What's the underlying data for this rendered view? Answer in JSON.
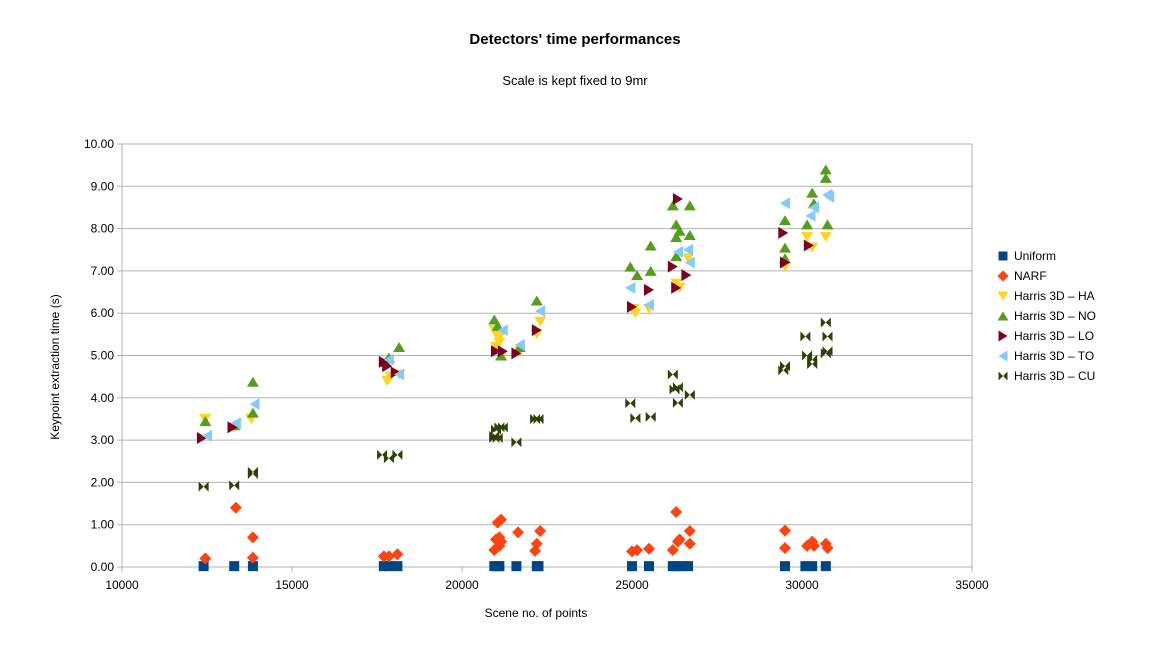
{
  "chart_data": {
    "type": "scatter",
    "title": "Detectors' time performances",
    "subtitle": "Scale is kept fixed to 9mr",
    "xlabel": "Scene no. of points",
    "ylabel": "Keypoint extraction time (s)",
    "xlim": [
      10000,
      35000
    ],
    "ylim": [
      0,
      10
    ],
    "x_ticks": [
      "10000",
      "15000",
      "20000",
      "25000",
      "30000",
      "35000"
    ],
    "y_ticks": [
      "0.00",
      "1.00",
      "2.00",
      "3.00",
      "4.00",
      "5.00",
      "6.00",
      "7.00",
      "8.00",
      "9.00",
      "10.00"
    ],
    "grid": "horizontal",
    "legend_position": "right",
    "series": [
      {
        "name": "Uniform",
        "color": "#004586",
        "marker": "square",
        "points": [
          [
            12400,
            0.02
          ],
          [
            13300,
            0.02
          ],
          [
            13850,
            0.02
          ],
          [
            17700,
            0.02
          ],
          [
            17850,
            0.02
          ],
          [
            18100,
            0.02
          ],
          [
            20950,
            0.02
          ],
          [
            21050,
            0.02
          ],
          [
            21100,
            0.02
          ],
          [
            21600,
            0.02
          ],
          [
            22200,
            0.02
          ],
          [
            22250,
            0.02
          ],
          [
            25000,
            0.02
          ],
          [
            25500,
            0.02
          ],
          [
            26200,
            0.02
          ],
          [
            26300,
            0.02
          ],
          [
            26500,
            0.02
          ],
          [
            26650,
            0.02
          ],
          [
            29500,
            0.02
          ],
          [
            30100,
            0.02
          ],
          [
            30300,
            0.02
          ],
          [
            30700,
            0.02
          ]
        ]
      },
      {
        "name": "NARF",
        "color": "#ff420e",
        "marker": "diamond",
        "points": [
          [
            12450,
            0.2
          ],
          [
            13350,
            1.4
          ],
          [
            13850,
            0.22
          ],
          [
            13850,
            0.7
          ],
          [
            17700,
            0.25
          ],
          [
            17850,
            0.25
          ],
          [
            18100,
            0.3
          ],
          [
            20950,
            0.4
          ],
          [
            21000,
            0.65
          ],
          [
            21050,
            1.05
          ],
          [
            21100,
            0.7
          ],
          [
            21150,
            1.12
          ],
          [
            21100,
            0.5
          ],
          [
            21150,
            0.6
          ],
          [
            21650,
            0.82
          ],
          [
            22150,
            0.38
          ],
          [
            22200,
            0.55
          ],
          [
            22300,
            0.85
          ],
          [
            25000,
            0.37
          ],
          [
            25150,
            0.4
          ],
          [
            25500,
            0.43
          ],
          [
            26200,
            0.4
          ],
          [
            26300,
            1.3
          ],
          [
            26350,
            0.6
          ],
          [
            26400,
            0.65
          ],
          [
            26700,
            0.85
          ],
          [
            26700,
            0.55
          ],
          [
            29500,
            0.86
          ],
          [
            29500,
            0.45
          ],
          [
            30150,
            0.5
          ],
          [
            30300,
            0.6
          ],
          [
            30350,
            0.5
          ],
          [
            30700,
            0.55
          ],
          [
            30750,
            0.45
          ]
        ]
      },
      {
        "name": "Harris 3D – HA",
        "color": "#ffd320",
        "marker": "triangle-down",
        "points": [
          [
            12450,
            3.5
          ],
          [
            13300,
            3.3
          ],
          [
            13800,
            3.5
          ],
          [
            17800,
            4.4
          ],
          [
            17900,
            4.5
          ],
          [
            18150,
            4.55
          ],
          [
            21000,
            5.2
          ],
          [
            21050,
            5.45
          ],
          [
            21100,
            5.3
          ],
          [
            21150,
            5.5
          ],
          [
            20950,
            5.6
          ],
          [
            21150,
            5.0
          ],
          [
            21700,
            5.1
          ],
          [
            22200,
            5.5
          ],
          [
            22300,
            5.8
          ],
          [
            25050,
            6.1
          ],
          [
            25100,
            6.0
          ],
          [
            25500,
            6.1
          ],
          [
            26300,
            6.7
          ],
          [
            26400,
            6.6
          ],
          [
            26650,
            7.3
          ],
          [
            29500,
            7.1
          ],
          [
            30150,
            7.8
          ],
          [
            30300,
            7.55
          ],
          [
            30700,
            7.8
          ]
        ]
      },
      {
        "name": "Harris 3D – NO",
        "color": "#579d1c",
        "marker": "triangle-up",
        "points": [
          [
            12450,
            3.45
          ],
          [
            13300,
            3.35
          ],
          [
            13850,
            3.65
          ],
          [
            13850,
            4.38
          ],
          [
            17750,
            4.85
          ],
          [
            17850,
            4.95
          ],
          [
            18150,
            5.2
          ],
          [
            20950,
            5.85
          ],
          [
            21050,
            5.7
          ],
          [
            21150,
            5.0
          ],
          [
            21700,
            5.2
          ],
          [
            22200,
            6.3
          ],
          [
            24950,
            7.1
          ],
          [
            25150,
            6.9
          ],
          [
            25550,
            7.6
          ],
          [
            25550,
            7.0
          ],
          [
            26200,
            8.55
          ],
          [
            26300,
            8.1
          ],
          [
            26300,
            7.8
          ],
          [
            26400,
            7.95
          ],
          [
            26300,
            7.35
          ],
          [
            26700,
            8.55
          ],
          [
            26700,
            7.85
          ],
          [
            29500,
            8.2
          ],
          [
            29500,
            7.55
          ],
          [
            29500,
            7.3
          ],
          [
            30150,
            8.1
          ],
          [
            30300,
            8.85
          ],
          [
            30350,
            8.6
          ],
          [
            30700,
            9.4
          ],
          [
            30700,
            9.2
          ],
          [
            30750,
            8.1
          ]
        ]
      },
      {
        "name": "Harris 3D – LO",
        "color": "#7e0021",
        "marker": "triangle-right",
        "points": [
          [
            12350,
            3.05
          ],
          [
            13250,
            3.3
          ],
          [
            17700,
            4.85
          ],
          [
            17800,
            4.75
          ],
          [
            18050,
            4.6
          ],
          [
            21000,
            5.1
          ],
          [
            21200,
            5.1
          ],
          [
            21600,
            5.05
          ],
          [
            22200,
            5.6
          ],
          [
            25000,
            6.15
          ],
          [
            25500,
            6.55
          ],
          [
            26200,
            7.1
          ],
          [
            26300,
            6.6
          ],
          [
            26350,
            8.7
          ],
          [
            26600,
            6.9
          ],
          [
            29450,
            7.9
          ],
          [
            29500,
            7.2
          ],
          [
            30200,
            7.6
          ]
        ]
      },
      {
        "name": "Harris 3D – TO",
        "color": "#83caff",
        "marker": "triangle-left",
        "points": [
          [
            12500,
            3.1
          ],
          [
            13350,
            3.4
          ],
          [
            13900,
            3.85
          ],
          [
            17850,
            4.9
          ],
          [
            18150,
            4.55
          ],
          [
            21200,
            5.6
          ],
          [
            21700,
            5.25
          ],
          [
            22300,
            6.05
          ],
          [
            24950,
            6.6
          ],
          [
            25500,
            6.2
          ],
          [
            26350,
            7.45
          ],
          [
            26650,
            7.5
          ],
          [
            26700,
            7.2
          ],
          [
            29500,
            8.6
          ],
          [
            30250,
            8.3
          ],
          [
            30350,
            8.5
          ],
          [
            30750,
            8.8
          ],
          [
            30800,
            8.75
          ]
        ]
      },
      {
        "name": "Harris 3D – CU",
        "color": "#314004",
        "marker": "bowtie",
        "points": [
          [
            12400,
            1.9
          ],
          [
            13300,
            1.93
          ],
          [
            13850,
            2.2
          ],
          [
            13850,
            2.25
          ],
          [
            17650,
            2.65
          ],
          [
            17850,
            2.57
          ],
          [
            18100,
            2.65
          ],
          [
            20950,
            3.05
          ],
          [
            20950,
            3.1
          ],
          [
            21000,
            3.25
          ],
          [
            21050,
            3.05
          ],
          [
            21100,
            3.3
          ],
          [
            21200,
            3.3
          ],
          [
            21600,
            2.95
          ],
          [
            22150,
            3.5
          ],
          [
            22250,
            3.5
          ],
          [
            24950,
            3.87
          ],
          [
            25100,
            3.52
          ],
          [
            25550,
            3.55
          ],
          [
            26200,
            4.55
          ],
          [
            26250,
            4.2
          ],
          [
            26350,
            3.88
          ],
          [
            26350,
            4.25
          ],
          [
            26700,
            4.07
          ],
          [
            29450,
            4.65
          ],
          [
            29500,
            4.75
          ],
          [
            30100,
            5.45
          ],
          [
            30150,
            5.0
          ],
          [
            30300,
            4.9
          ],
          [
            30300,
            4.8
          ],
          [
            30700,
            5.78
          ],
          [
            30750,
            5.45
          ],
          [
            30750,
            5.1
          ],
          [
            30700,
            5.05
          ]
        ]
      }
    ]
  }
}
